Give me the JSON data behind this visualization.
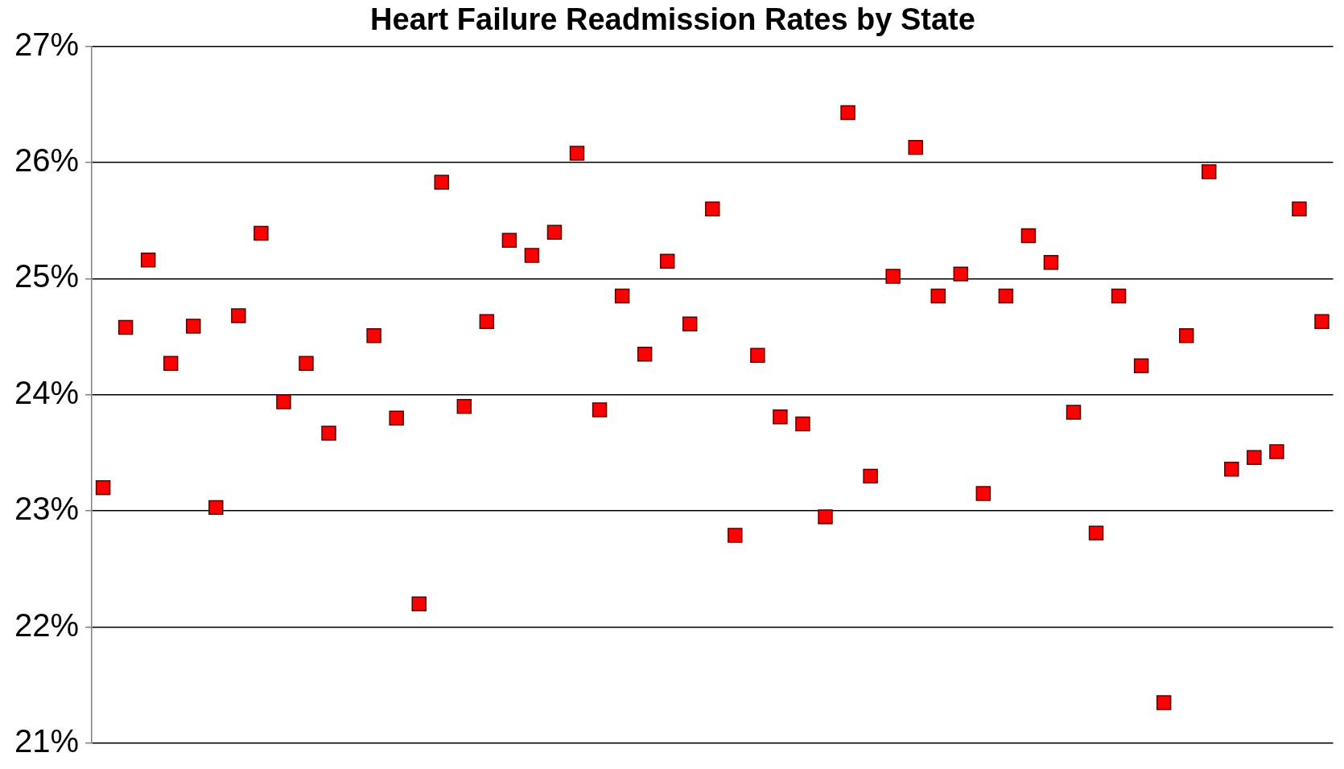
{
  "chart_data": {
    "type": "scatter",
    "title": "Heart Failure Readmission Rates by State",
    "categories": [
      null,
      null,
      null,
      null,
      null,
      null,
      null,
      null,
      null,
      null,
      null,
      null,
      null,
      null,
      null,
      null,
      null,
      null,
      null,
      null,
      null,
      null,
      null,
      null,
      null,
      null,
      null,
      null,
      null,
      null,
      null,
      null,
      null,
      null,
      null,
      null,
      null,
      null,
      null,
      null,
      null,
      null,
      null,
      null,
      null,
      null,
      null,
      null,
      null,
      null,
      null,
      null,
      null,
      null,
      null
    ],
    "series": [
      {
        "color": "#ff0000",
        "values": [
          23.2,
          24.58,
          25.16,
          24.27,
          24.59,
          23.03,
          24.68,
          25.39,
          23.94,
          24.27,
          23.67,
          null,
          24.51,
          23.8,
          22.2,
          25.83,
          23.9,
          24.63,
          25.33,
          25.2,
          25.4,
          26.08,
          23.87,
          24.85,
          24.35,
          25.15,
          24.61,
          25.6,
          22.79,
          24.34,
          23.81,
          23.75,
          22.95,
          26.43,
          23.3,
          25.02,
          26.13,
          24.85,
          25.04,
          23.15,
          24.85,
          25.37,
          25.14,
          23.85,
          22.81,
          24.85,
          24.25,
          21.35,
          24.51,
          25.92,
          23.36,
          23.46,
          23.51,
          25.6,
          24.63
        ]
      }
    ],
    "ylim": [
      21,
      27
    ],
    "yticks": [
      {
        "value": 21,
        "label": "21%"
      },
      {
        "value": 22,
        "label": "22%"
      },
      {
        "value": 23,
        "label": "23%"
      },
      {
        "value": 24,
        "label": "24%"
      },
      {
        "value": 25,
        "label": "25%"
      },
      {
        "value": 26,
        "label": "26%"
      },
      {
        "value": 27,
        "label": "27%"
      }
    ],
    "tick_labels": "y",
    "grid": "y",
    "marker": "square",
    "legend": false
  }
}
